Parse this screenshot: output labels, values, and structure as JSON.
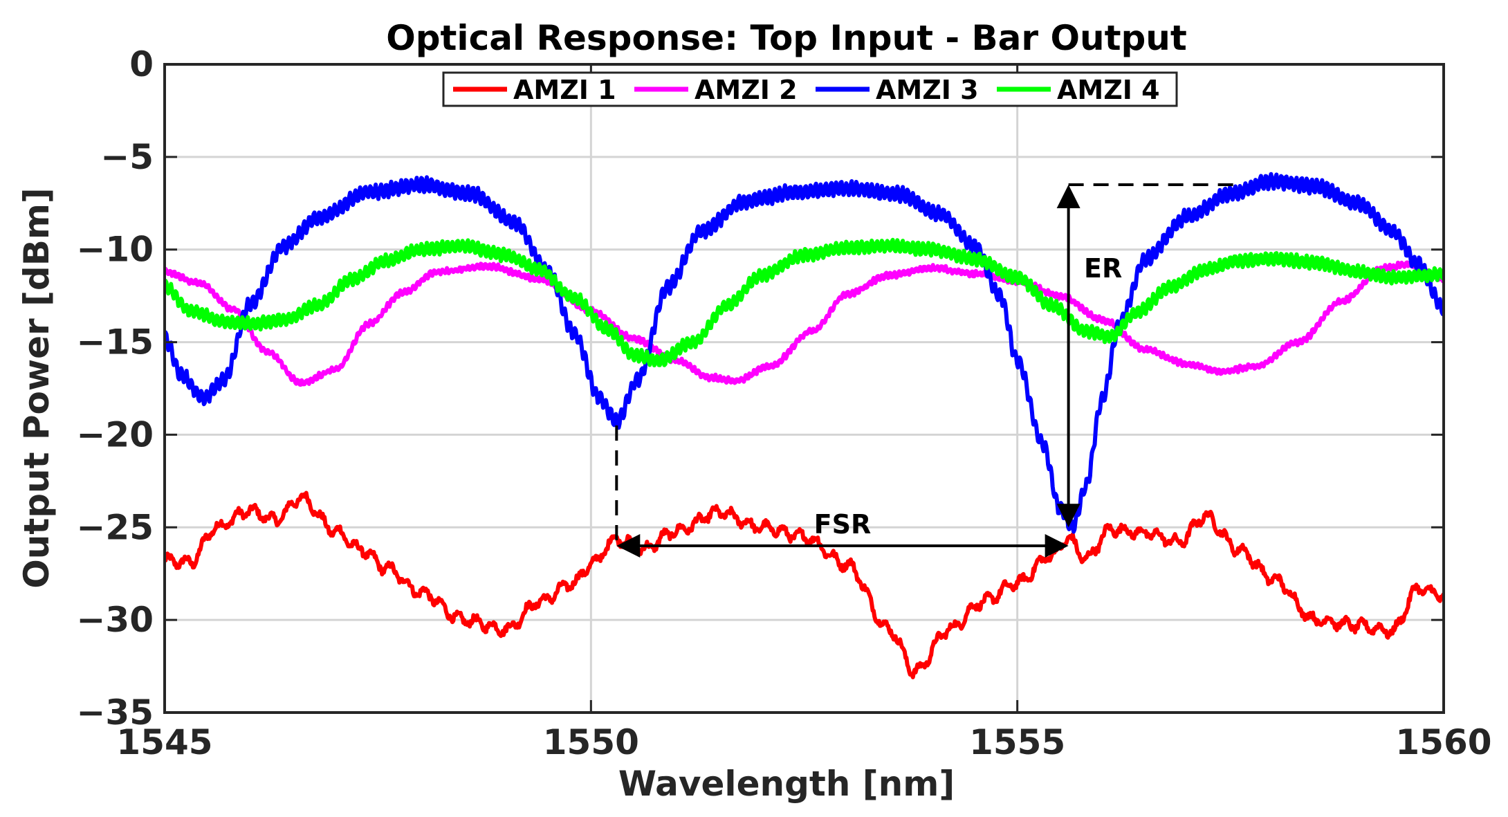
{
  "chart_data": {
    "type": "line",
    "title": "Optical Response: Top Input - Bar Output",
    "xlabel": "Wavelength [nm]",
    "ylabel": "Output Power [dBm]",
    "xlim": [
      1545,
      1560
    ],
    "ylim": [
      -35,
      0
    ],
    "xticks": [
      1545,
      1550,
      1555,
      1560
    ],
    "xtick_labels": [
      "1545",
      "1550",
      "1555",
      "1560"
    ],
    "yticks": [
      0,
      -5,
      -10,
      -15,
      -20,
      -25,
      -30,
      -35
    ],
    "ytick_labels": [
      "0",
      "−5",
      "−10",
      "−15",
      "−20",
      "−25",
      "−30",
      "−35"
    ],
    "grid": true,
    "legend_position": "top",
    "series": [
      {
        "name": "AMZI 1",
        "color": "#ff0000",
        "x": [
          1545.0,
          1545.3,
          1545.6,
          1546.0,
          1546.3,
          1546.6,
          1547.0,
          1547.3,
          1547.6,
          1548.0,
          1548.5,
          1549.0,
          1549.4,
          1549.8,
          1550.0,
          1550.3,
          1550.6,
          1551.0,
          1551.5,
          1552.0,
          1552.5,
          1553.0,
          1553.5,
          1553.8,
          1554.2,
          1554.6,
          1555.0,
          1555.4,
          1555.6,
          1555.8,
          1556.1,
          1556.5,
          1556.9,
          1557.2,
          1557.6,
          1558.0,
          1558.5,
          1559.0,
          1559.4,
          1559.7,
          1560.0
        ],
        "values": [
          -26.8,
          -26.9,
          -25.0,
          -24.1,
          -24.6,
          -23.4,
          -25.2,
          -26.2,
          -27.2,
          -28.5,
          -30.0,
          -30.5,
          -29.0,
          -28.0,
          -27.0,
          -25.6,
          -26.2,
          -25.2,
          -24.2,
          -25.0,
          -25.5,
          -27.0,
          -30.5,
          -32.8,
          -30.5,
          -29.0,
          -28.0,
          -26.5,
          -25.6,
          -26.7,
          -25.1,
          -25.3,
          -25.8,
          -24.4,
          -26.2,
          -27.8,
          -30.0,
          -30.3,
          -30.6,
          -28.3,
          -28.7
        ]
      },
      {
        "name": "AMZI 2",
        "color": "#ff00ff",
        "x": [
          1545.0,
          1545.4,
          1545.8,
          1546.2,
          1546.6,
          1547.0,
          1547.4,
          1547.8,
          1548.2,
          1548.8,
          1549.4,
          1550.0,
          1550.5,
          1551.0,
          1551.4,
          1551.7,
          1552.1,
          1552.6,
          1553.0,
          1553.5,
          1554.0,
          1554.5,
          1555.0,
          1555.5,
          1556.0,
          1556.5,
          1557.0,
          1557.4,
          1557.8,
          1558.3,
          1558.8,
          1559.3,
          1559.6,
          1560.0
        ],
        "values": [
          -11.2,
          -11.8,
          -13.2,
          -15.5,
          -17.2,
          -16.5,
          -14.0,
          -12.3,
          -11.2,
          -10.9,
          -11.6,
          -13.3,
          -14.8,
          -16.0,
          -16.9,
          -17.1,
          -16.3,
          -14.4,
          -12.4,
          -11.4,
          -11.0,
          -11.3,
          -11.7,
          -12.5,
          -13.8,
          -15.4,
          -16.2,
          -16.6,
          -16.3,
          -15.0,
          -12.8,
          -11.0,
          -10.8,
          -11.6
        ]
      },
      {
        "name": "AMZI 3",
        "color": "#0000ff",
        "x": [
          1545.0,
          1545.2,
          1545.45,
          1545.7,
          1546.0,
          1546.4,
          1546.8,
          1547.4,
          1548.0,
          1548.6,
          1549.1,
          1549.5,
          1549.8,
          1550.1,
          1550.3,
          1550.55,
          1550.9,
          1551.3,
          1551.8,
          1552.4,
          1553.0,
          1553.6,
          1554.1,
          1554.5,
          1554.8,
          1555.0,
          1555.3,
          1555.5,
          1555.65,
          1555.8,
          1556.0,
          1556.2,
          1556.5,
          1557.0,
          1557.5,
          1558.0,
          1558.5,
          1559.0,
          1559.4,
          1559.7,
          1560.0
        ],
        "values": [
          -14.8,
          -16.8,
          -18.0,
          -17.0,
          -13.0,
          -9.8,
          -8.3,
          -6.9,
          -6.5,
          -7.0,
          -8.5,
          -11.2,
          -14.5,
          -18.0,
          -19.3,
          -17.0,
          -12.0,
          -9.0,
          -7.4,
          -6.9,
          -6.7,
          -7.0,
          -8.1,
          -9.8,
          -12.5,
          -16.0,
          -20.5,
          -24.0,
          -25.0,
          -22.8,
          -18.0,
          -14.0,
          -10.5,
          -8.2,
          -7.0,
          -6.3,
          -6.6,
          -7.5,
          -9.0,
          -10.8,
          -13.2
        ]
      },
      {
        "name": "AMZI 4",
        "color": "#00ff00",
        "x": [
          1545.0,
          1545.3,
          1545.7,
          1546.0,
          1546.4,
          1546.8,
          1547.2,
          1547.6,
          1548.0,
          1548.5,
          1549.0,
          1549.4,
          1549.8,
          1550.2,
          1550.5,
          1550.8,
          1551.2,
          1551.6,
          1552.0,
          1552.5,
          1553.0,
          1553.5,
          1554.0,
          1554.5,
          1555.0,
          1555.4,
          1555.8,
          1556.1,
          1556.4,
          1556.8,
          1557.2,
          1557.6,
          1558.0,
          1558.5,
          1559.0,
          1559.4,
          1559.8,
          1560.0
        ],
        "values": [
          -12.0,
          -13.3,
          -13.9,
          -14.0,
          -13.8,
          -13.0,
          -11.6,
          -10.6,
          -10.0,
          -9.8,
          -10.3,
          -11.1,
          -12.6,
          -14.3,
          -15.7,
          -16.0,
          -15.0,
          -13.0,
          -11.4,
          -10.3,
          -9.9,
          -9.8,
          -10.0,
          -10.5,
          -11.5,
          -13.0,
          -14.4,
          -14.7,
          -13.4,
          -12.0,
          -11.1,
          -10.6,
          -10.5,
          -10.7,
          -11.2,
          -11.5,
          -11.4,
          -11.3
        ]
      }
    ],
    "annotations": [
      {
        "label": "FSR",
        "type": "double-arrow",
        "from": [
          1550.3,
          -26.0
        ],
        "to": [
          1555.6,
          -26.0
        ]
      },
      {
        "label": "ER",
        "type": "double-arrow",
        "from": [
          1555.6,
          -6.5
        ],
        "to": [
          1555.6,
          -25.0
        ]
      }
    ]
  }
}
